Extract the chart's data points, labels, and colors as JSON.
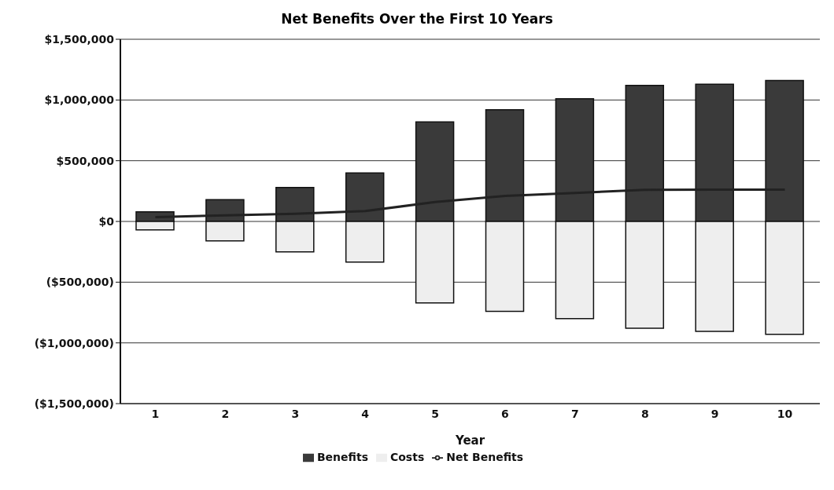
{
  "chart_data": {
    "type": "bar",
    "title": "Net Benefits Over the First 10 Years",
    "xlabel": "Year",
    "categories": [
      "1",
      "2",
      "3",
      "4",
      "5",
      "6",
      "7",
      "8",
      "9",
      "10"
    ],
    "series": [
      {
        "name": "Benefits",
        "color": "#3a3a3a",
        "values": [
          80000,
          180000,
          280000,
          400000,
          820000,
          920000,
          1010000,
          1120000,
          1130000,
          1160000
        ]
      },
      {
        "name": "Costs",
        "color": "#eeeeee",
        "values": [
          -70000,
          -160000,
          -250000,
          -335000,
          -670000,
          -740000,
          -800000,
          -880000,
          -905000,
          -930000
        ]
      },
      {
        "name": "Net Benefits",
        "type": "line",
        "color": "#222222",
        "values": [
          35000,
          50000,
          63000,
          85000,
          160000,
          210000,
          235000,
          260000,
          262000,
          262000
        ]
      }
    ],
    "stacked": true,
    "ylim": [
      -1500000,
      1500000
    ],
    "yticks": [
      {
        "value": -1500000,
        "label": "($1,500,000)"
      },
      {
        "value": -1000000,
        "label": "($1,000,000)"
      },
      {
        "value": -500000,
        "label": "($500,000)"
      },
      {
        "value": 0,
        "label": "$0"
      },
      {
        "value": 500000,
        "label": "$500,000"
      },
      {
        "value": 1000000,
        "label": "$1,000,000"
      },
      {
        "value": 1500000,
        "label": "$1,500,000"
      }
    ],
    "grid": "y",
    "legend": "bottom",
    "marker": "none",
    "line_style": "solid"
  }
}
